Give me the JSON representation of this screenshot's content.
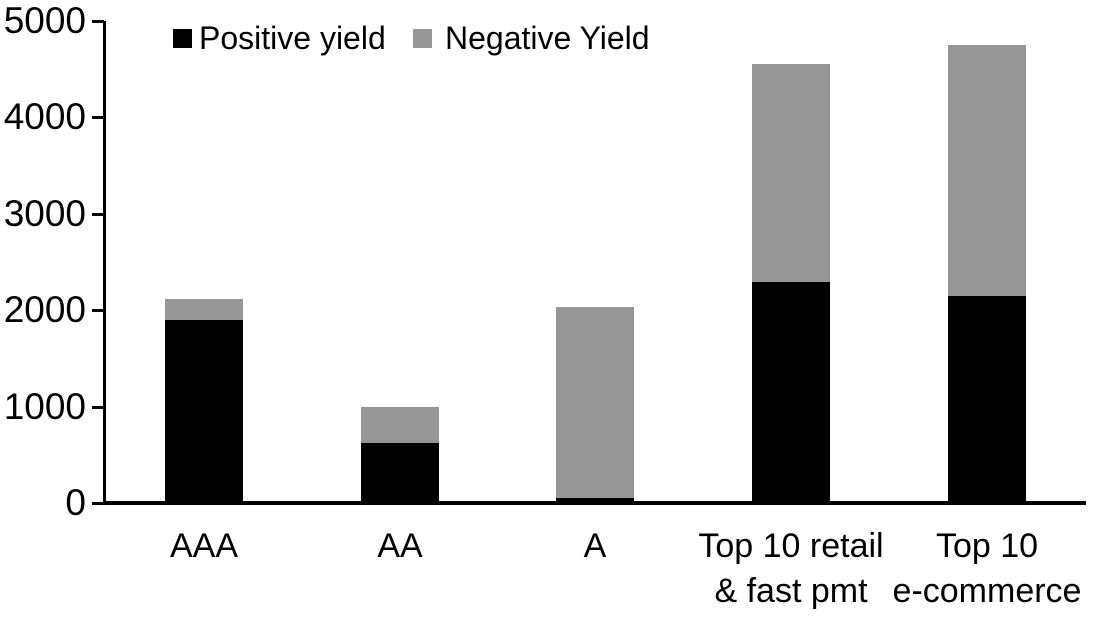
{
  "chart_data": {
    "type": "bar",
    "stacked": true,
    "categories": [
      "AAA",
      "AA",
      "A",
      "Top 10 retail\n& fast pmt",
      "Top 10\ne-commerce"
    ],
    "series": [
      {
        "name": "Positive yield",
        "color": "#000000",
        "values": [
          1900,
          625,
          50,
          2290,
          2150
        ]
      },
      {
        "name": "Negative Yield",
        "color": "#969696",
        "values": [
          220,
          375,
          1980,
          2260,
          2600
        ]
      }
    ],
    "totals": [
      2120,
      1000,
      2030,
      4550,
      4750
    ],
    "ylim": [
      0,
      5000
    ],
    "ytick_values": [
      0,
      1000,
      2000,
      3000,
      4000,
      5000
    ],
    "ytick_labels": [
      "0",
      "1000",
      "2000",
      "3000",
      "4000",
      "5000"
    ],
    "xlabel": "",
    "ylabel": "",
    "title": "",
    "legend_position": "top-left",
    "grid": false,
    "axis_color": "#000000",
    "background_color": "#ffffff"
  }
}
